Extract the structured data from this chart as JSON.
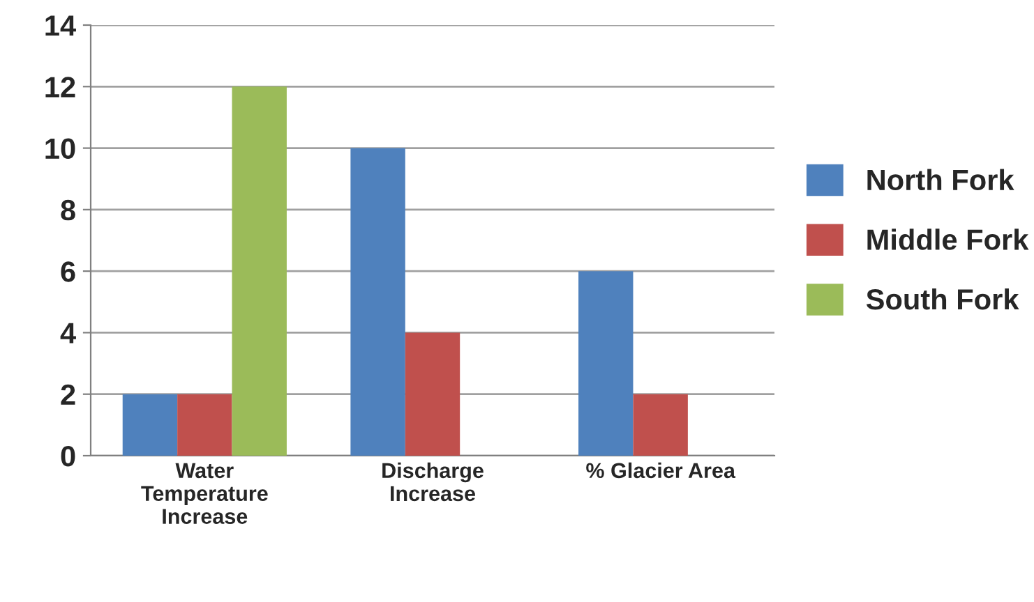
{
  "chart_data": {
    "type": "bar",
    "categories": [
      "Water\nTemperature\nIncrease",
      "Discharge\nIncrease",
      "% Glacier Area"
    ],
    "series": [
      {
        "name": "North Fork",
        "color": "#4f81bd",
        "values": [
          2,
          10,
          6
        ]
      },
      {
        "name": "Middle Fork",
        "color": "#c0504d",
        "values": [
          2,
          4,
          2
        ]
      },
      {
        "name": "South Fork",
        "color": "#9bbb59",
        "values": [
          12,
          null,
          null
        ]
      }
    ],
    "ylim": [
      0,
      14
    ],
    "yticks": [
      0,
      2,
      4,
      6,
      8,
      10,
      12,
      14
    ],
    "grid": "y",
    "legend": "right"
  }
}
